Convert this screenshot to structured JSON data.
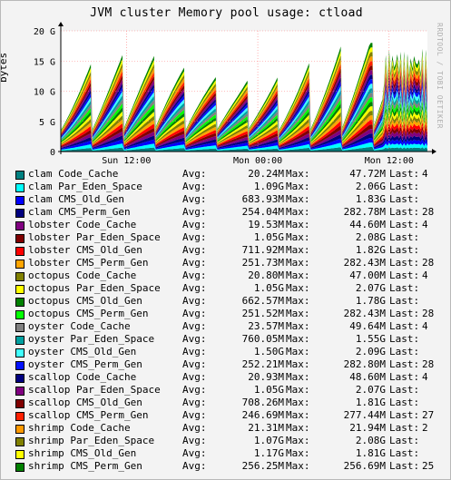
{
  "chart_data": {
    "type": "area",
    "title": "JVM cluster Memory pool usage: ctload",
    "ylabel": "bytes",
    "watermark": "RRDTOOL / TOBI OETIKER",
    "y_ticks": [
      "0",
      "5 G",
      "10 G",
      "15 G",
      "20 G"
    ],
    "y_tick_values": [
      0,
      5,
      10,
      15,
      20
    ],
    "ylim": [
      0,
      20
    ],
    "x_ticks": [
      "Sun 12:00",
      "Mon 00:00",
      "Mon 12:00"
    ],
    "x_tick_hours": [
      6,
      18,
      30
    ],
    "x_range_hours": [
      0,
      33.5
    ],
    "grid": true,
    "stack_total_max_gb": 18,
    "series": [
      {
        "name": "clam Code_Cache",
        "color": "#008080",
        "avg": "20.24M",
        "max": "47.72M",
        "last": "4"
      },
      {
        "name": "clam Par_Eden_Space",
        "color": "#00ffff",
        "avg": "1.09G",
        "max": "2.06G",
        "last": ""
      },
      {
        "name": "clam CMS_Old_Gen",
        "color": "#0000ff",
        "avg": "683.93M",
        "max": "1.83G",
        "last": ""
      },
      {
        "name": "clam CMS_Perm_Gen",
        "color": "#00007f",
        "avg": "254.04M",
        "max": "282.78M",
        "last": "28"
      },
      {
        "name": "lobster Code_Cache",
        "color": "#800080",
        "avg": "19.53M",
        "max": "44.60M",
        "last": "4"
      },
      {
        "name": "lobster Par_Eden_Space",
        "color": "#800000",
        "avg": "1.05G",
        "max": "2.08G",
        "last": ""
      },
      {
        "name": "lobster CMS_Old_Gen",
        "color": "#ff0000",
        "avg": "711.92M",
        "max": "1.82G",
        "last": ""
      },
      {
        "name": "lobster CMS_Perm_Gen",
        "color": "#ffa500",
        "avg": "251.73M",
        "max": "282.43M",
        "last": "28"
      },
      {
        "name": "octopus Code_Cache",
        "color": "#808000",
        "avg": "20.80M",
        "max": "47.00M",
        "last": "4"
      },
      {
        "name": "octopus Par_Eden_Space",
        "color": "#ffff00",
        "avg": "1.05G",
        "max": "2.07G",
        "last": ""
      },
      {
        "name": "octopus CMS_Old_Gen",
        "color": "#008000",
        "avg": "662.57M",
        "max": "1.78G",
        "last": ""
      },
      {
        "name": "octopus CMS_Perm_Gen",
        "color": "#00ff00",
        "avg": "251.52M",
        "max": "282.43M",
        "last": "28"
      },
      {
        "name": "oyster Code_Cache",
        "color": "#808080",
        "avg": "23.57M",
        "max": "49.64M",
        "last": "4"
      },
      {
        "name": "oyster Par_Eden_Space",
        "color": "#00a0a0",
        "avg": "760.05M",
        "max": "1.55G",
        "last": ""
      },
      {
        "name": "oyster CMS_Old_Gen",
        "color": "#40ffff",
        "avg": "1.50G",
        "max": "2.09G",
        "last": ""
      },
      {
        "name": "oyster CMS_Perm_Gen",
        "color": "#0010ff",
        "avg": "252.21M",
        "max": "282.80M",
        "last": "28"
      },
      {
        "name": "scallop Code_Cache",
        "color": "#000080",
        "avg": "20.93M",
        "max": "48.60M",
        "last": "4"
      },
      {
        "name": "scallop Par_Eden_Space",
        "color": "#800080",
        "avg": "1.05G",
        "max": "2.07G",
        "last": ""
      },
      {
        "name": "scallop CMS_Old_Gen",
        "color": "#800000",
        "avg": "708.26M",
        "max": "1.81G",
        "last": ""
      },
      {
        "name": "scallop CMS_Perm_Gen",
        "color": "#ff2000",
        "avg": "246.69M",
        "max": "277.44M",
        "last": "27"
      },
      {
        "name": "shrimp Code_Cache",
        "color": "#ff9900",
        "avg": "21.31M",
        "max": "21.94M",
        "last": "2"
      },
      {
        "name": "shrimp Par_Eden_Space",
        "color": "#808000",
        "avg": "1.07G",
        "max": "2.08G",
        "last": ""
      },
      {
        "name": "shrimp CMS_Old_Gen",
        "color": "#ffff00",
        "avg": "1.17G",
        "max": "1.81G",
        "last": ""
      },
      {
        "name": "shrimp CMS_Perm_Gen",
        "color": "#008000",
        "avg": "256.25M",
        "max": "256.69M",
        "last": "25"
      }
    ]
  },
  "labels": {
    "avg": "Avg:",
    "max": "Max:",
    "last": "Last:"
  }
}
